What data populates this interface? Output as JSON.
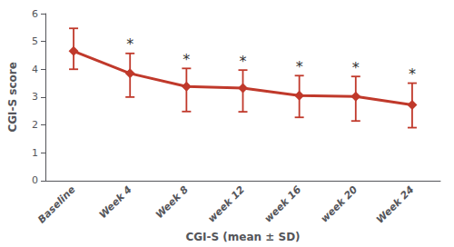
{
  "chart_data": {
    "type": "line",
    "xlabel": "CGI-S (mean ± SD)",
    "ylabel": "CGI-S score",
    "categories": [
      "Baseline",
      "Week 4",
      "Week 8",
      "week 12",
      "week 16",
      "week 20",
      "Week 24"
    ],
    "values": [
      4.65,
      3.85,
      3.38,
      3.32,
      3.05,
      3.02,
      2.72
    ],
    "error_upper": [
      0.82,
      0.72,
      0.65,
      0.65,
      0.72,
      0.72,
      0.78
    ],
    "error_lower": [
      0.65,
      0.85,
      0.9,
      0.85,
      0.78,
      0.88,
      0.82
    ],
    "annotations": [
      {
        "category": "Week 4",
        "text": "*"
      },
      {
        "category": "Week 8",
        "text": "*"
      },
      {
        "category": "week 12",
        "text": "*"
      },
      {
        "category": "week 16",
        "text": "*"
      },
      {
        "category": "week 20",
        "text": "*"
      },
      {
        "category": "Week 24",
        "text": "*"
      }
    ],
    "color": "#c0392b",
    "marker": "diamond",
    "ylim": [
      0,
      6
    ],
    "yticks": [
      0,
      1,
      2,
      3,
      4,
      5,
      6
    ],
    "grid": false
  }
}
